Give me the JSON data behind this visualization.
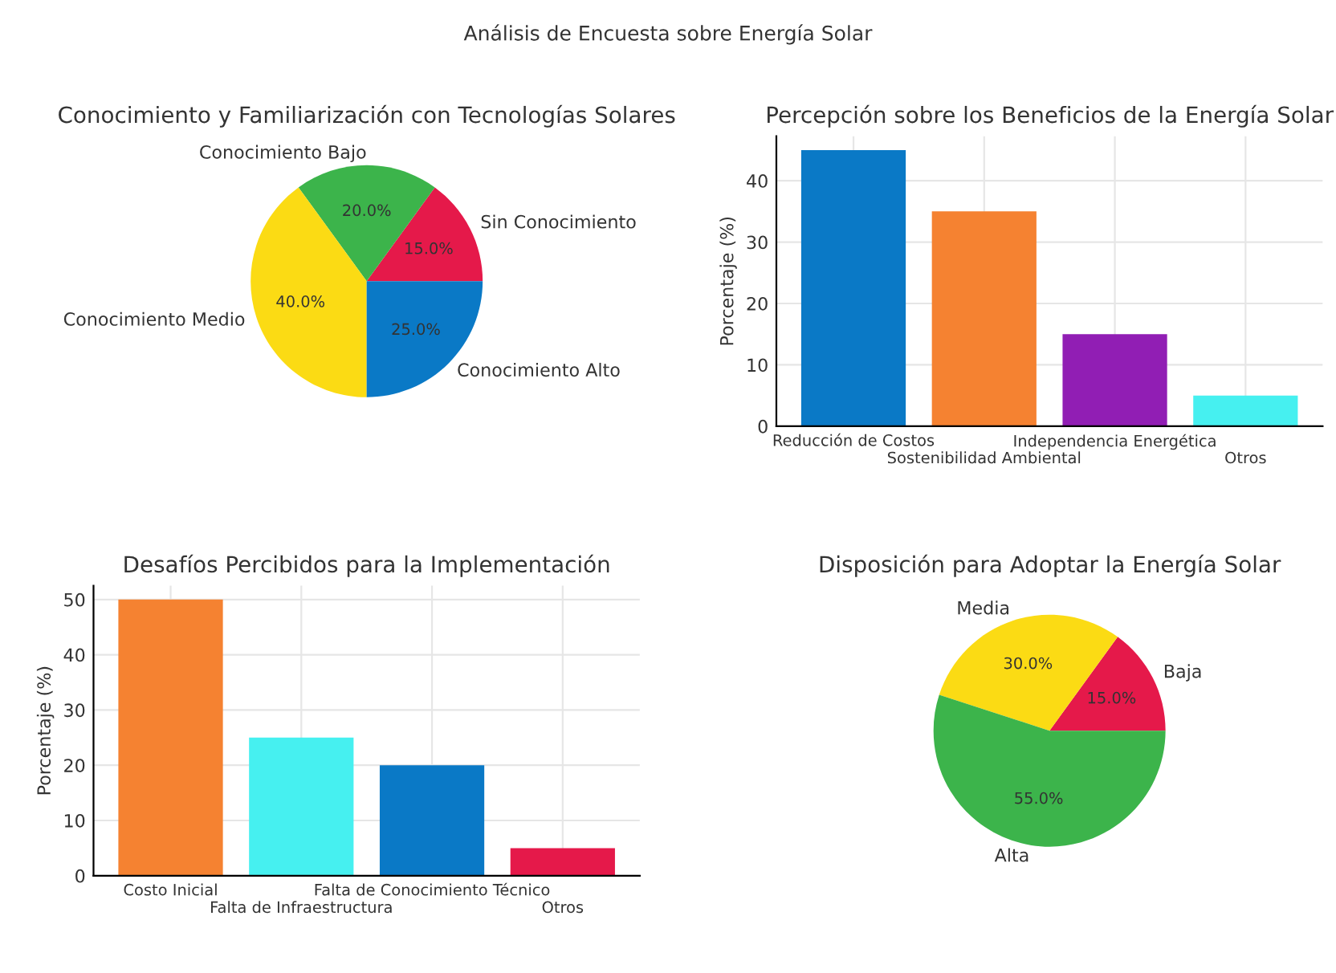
{
  "chart_data": [
    {
      "type": "pie",
      "title": "Conocimiento y Familiarización con Tecnologías Solares",
      "annotations": [
        "Análisis de Encuesta sobre Energía Solar"
      ],
      "categories": [
        "Sin Conocimiento",
        "Conocimiento Bajo",
        "Conocimiento Medio",
        "Conocimiento Alto"
      ],
      "values": [
        15,
        20,
        40,
        25
      ],
      "colors": [
        "#e5194a",
        "#3cb44b",
        "#fbdb14",
        "#0a79c6"
      ],
      "value_labels": [
        "15.0%",
        "20.0%",
        "40.0%",
        "25.0%"
      ]
    },
    {
      "type": "bar",
      "title": "Percepción sobre los Beneficios de la Energía Solar",
      "ylabel": "Porcentaje (%)",
      "categories": [
        "Reducción de Costos",
        "Sostenibilidad Ambiental",
        "Independencia Energética",
        "Otros"
      ],
      "values": [
        45,
        35,
        15,
        5
      ],
      "colors": [
        "#0a79c6",
        "#f58231",
        "#911eb4",
        "#46f0f0"
      ],
      "ylim": [
        0,
        47.25
      ],
      "yticks": [
        0,
        10,
        20,
        30,
        40
      ],
      "grid": true
    },
    {
      "type": "bar",
      "title": "Desafíos Percibidos para la Implementación",
      "ylabel": "Porcentaje (%)",
      "categories": [
        "Costo Inicial",
        "Falta de Infraestructura",
        "Falta de Conocimiento Técnico",
        "Otros"
      ],
      "values": [
        50,
        25,
        20,
        5
      ],
      "colors": [
        "#f58231",
        "#46f0f0",
        "#0a79c6",
        "#e5194a"
      ],
      "ylim": [
        0,
        52.5
      ],
      "yticks": [
        0,
        10,
        20,
        30,
        40,
        50
      ],
      "grid": true
    },
    {
      "type": "pie",
      "title": "Disposición para Adoptar la Energía Solar",
      "categories": [
        "Baja",
        "Media",
        "Alta"
      ],
      "values": [
        15,
        30,
        55
      ],
      "colors": [
        "#e5194a",
        "#fbdb14",
        "#3cb44b"
      ],
      "value_labels": [
        "15.0%",
        "30.0%",
        "55.0%"
      ]
    }
  ]
}
